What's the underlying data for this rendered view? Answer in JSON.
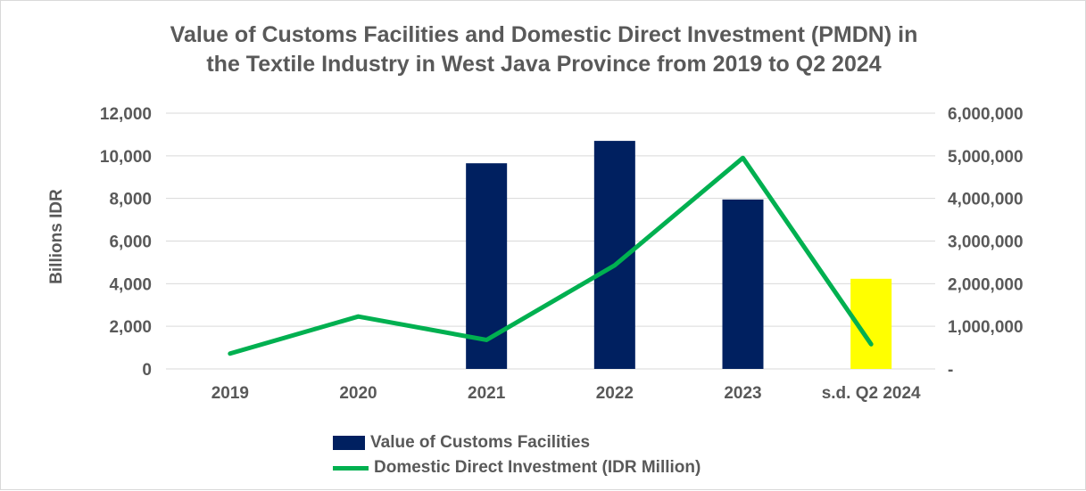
{
  "chart_data": {
    "type": "bar",
    "title_line1": "Value of Customs Facilities and Domestic Direct Investment (PMDN) in",
    "title_line2": "the Textile Industry in West Java Province from 2019 to Q2 2024",
    "ylabel": "Billions  IDR",
    "categories": [
      "2019",
      "2020",
      "2021",
      "2022",
      "2023",
      "s.d. Q2 2024"
    ],
    "y_left": {
      "ylim": [
        0,
        12000
      ],
      "ticks": [
        "0",
        "2,000",
        "4,000",
        "6,000",
        "8,000",
        "10,000",
        "12,000"
      ]
    },
    "y_right": {
      "ylim": [
        0,
        6000000
      ],
      "ticks": [
        "-",
        "1,000,000",
        "2,000,000",
        "3,000,000",
        "4,000,000",
        "5,000,000",
        "6,000,000"
      ]
    },
    "grid": true,
    "legend_position": "bottom",
    "series": [
      {
        "name": "Value of Customs Facilities",
        "kind": "bar",
        "axis": "left",
        "color": "#002060",
        "values": [
          null,
          null,
          9650,
          10700,
          7950,
          4230
        ],
        "highlight": {
          "index": 5,
          "color": "#ffff00"
        }
      },
      {
        "name": "Domestic Direct Investment (IDR Million)",
        "kind": "line",
        "axis": "right",
        "color": "#00b050",
        "values": [
          360000,
          1230000,
          680000,
          2430000,
          4950000,
          580000
        ]
      }
    ]
  }
}
